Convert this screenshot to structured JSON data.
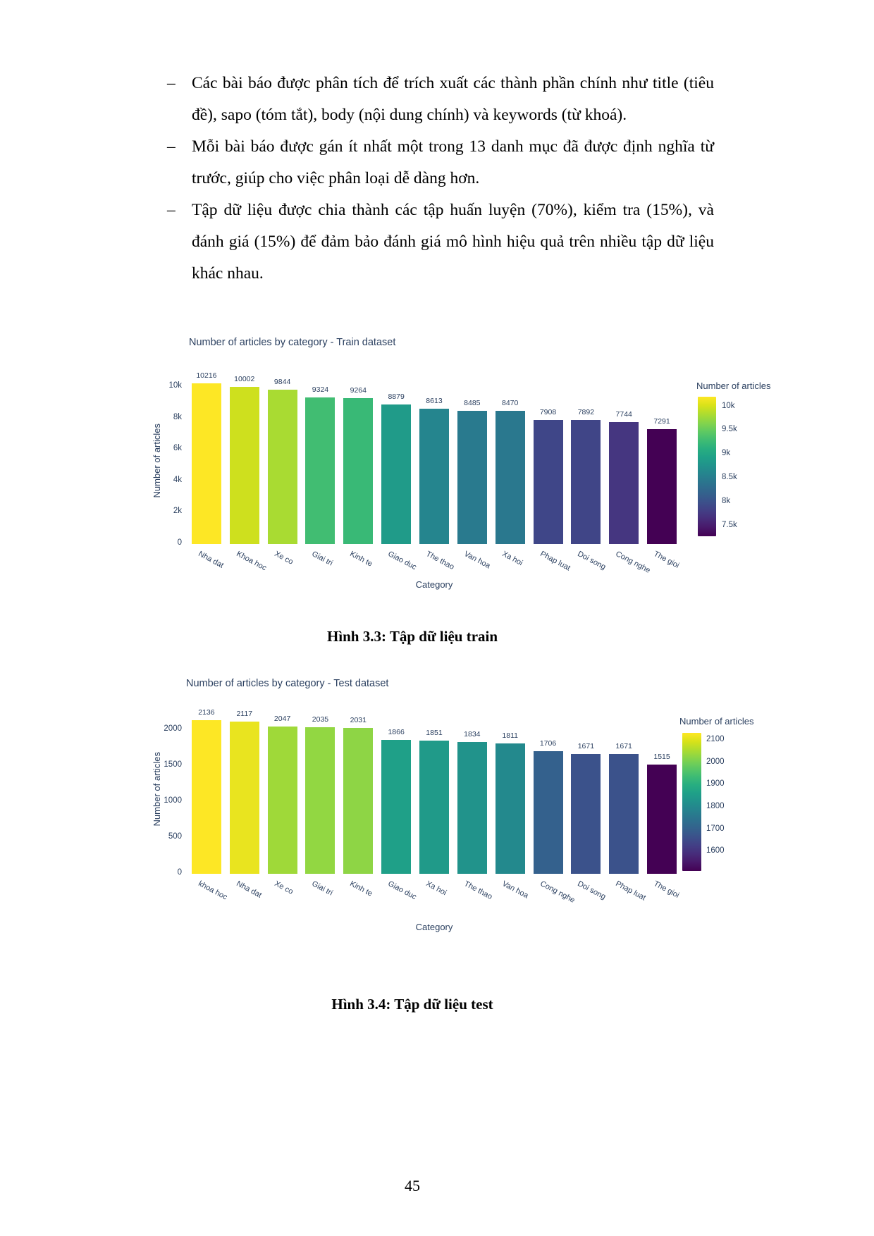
{
  "page": {
    "number": "45"
  },
  "bullets": [
    {
      "marker": "–",
      "text": "Các bài báo được phân tích để trích xuất các thành phần chính như title (tiêu đề), sapo (tóm tắt), body (nội dung chính) và keywords (từ khoá)."
    },
    {
      "marker": "–",
      "text": "Mỗi bài báo được gán ít nhất một trong 13 danh mục đã được định nghĩa từ trước, giúp cho việc phân loại dễ dàng hơn."
    },
    {
      "marker": "–",
      "text": "Tập dữ liệu được chia thành các tập huấn luyện (70%), kiểm tra (15%), và đánh giá (15%) để đảm bảo đánh giá mô hình hiệu quả trên nhiều tập dữ liệu khác nhau."
    }
  ],
  "captions": {
    "fig1": "Hình 3.3: Tập dữ liệu train",
    "fig2": "Hình 3.4: Tập dữ liệu test"
  },
  "colors": {
    "chart_text": "#2a3f5f",
    "background": "#ffffff",
    "viridis_stops": [
      "#fde725",
      "#d8e219",
      "#addc30",
      "#84d44b",
      "#5ec962",
      "#3fbc73",
      "#28ae80",
      "#1fa088",
      "#21918c",
      "#26828e",
      "#2c728e",
      "#33638d",
      "#3b528b",
      "#424086",
      "#472d7b",
      "#48186a",
      "#440154"
    ]
  },
  "chart_data": [
    {
      "type": "bar",
      "title": "Number of articles by category - Train dataset",
      "xlabel": "Category",
      "ylabel": "Number of articles",
      "categories": [
        "Nha dat",
        "Khoa hoc",
        "Xe co",
        "Giai tri",
        "Kinh te",
        "Giao duc",
        "The thao",
        "Van hoa",
        "Xa hoi",
        "Phap luat",
        "Doi song",
        "Cong nghe",
        "The gioi"
      ],
      "values": [
        10216,
        10002,
        9844,
        9324,
        9264,
        8879,
        8613,
        8485,
        8470,
        7908,
        7892,
        7744,
        7291
      ],
      "bar_colors": [
        "#fde725",
        "#cee01e",
        "#a9db32",
        "#41bd72",
        "#39b976",
        "#209b89",
        "#25858e",
        "#297a8e",
        "#2a788e",
        "#3f4688",
        "#404587",
        "#453680",
        "#440154"
      ],
      "ytick_labels": [
        "0",
        "2k",
        "4k",
        "6k",
        "8k",
        "10k"
      ],
      "ytick_values": [
        0,
        2000,
        4000,
        6000,
        8000,
        10000
      ],
      "ylim": [
        0,
        10630
      ],
      "grid": false,
      "legend_position": "right",
      "colorbar": {
        "title": "Number of articles",
        "tick_labels": [
          "10k",
          "9.5k",
          "9k",
          "8.5k",
          "8k",
          "7.5k"
        ],
        "tick_values": [
          10000,
          9500,
          9000,
          8500,
          8000,
          7500
        ],
        "min": 7291,
        "max": 10216
      }
    },
    {
      "type": "bar",
      "title": "Number of articles by category - Test dataset",
      "xlabel": "Category",
      "ylabel": "Number of articles",
      "categories": [
        "khoa hoc",
        "Nha dat",
        "Xe co",
        "Giai tri",
        "Kinh te",
        "Giao duc",
        "Xa hoi",
        "The thao",
        "Van hoa",
        "Cong nghe",
        "Doi song",
        "Phap luat",
        "The gioi"
      ],
      "values": [
        2136,
        2117,
        2047,
        2035,
        2031,
        1866,
        1851,
        1834,
        1811,
        1706,
        1671,
        1671,
        1515
      ],
      "bar_colors": [
        "#fde725",
        "#e9e41f",
        "#9fd939",
        "#92d742",
        "#8ed545",
        "#1fa088",
        "#209a89",
        "#21938b",
        "#23898d",
        "#34618d",
        "#3b528b",
        "#3b528b",
        "#440154"
      ],
      "ytick_labels": [
        "0",
        "500",
        "1000",
        "1500",
        "2000"
      ],
      "ytick_values": [
        0,
        500,
        1000,
        1500,
        2000
      ],
      "ylim": [
        0,
        2353
      ],
      "grid": false,
      "legend_position": "right",
      "colorbar": {
        "title": "Number of articles",
        "tick_labels": [
          "2100",
          "2000",
          "1900",
          "1800",
          "1700",
          "1600"
        ],
        "tick_values": [
          2100,
          2000,
          1900,
          1800,
          1700,
          1600
        ],
        "min": 1515,
        "max": 2136
      }
    }
  ]
}
